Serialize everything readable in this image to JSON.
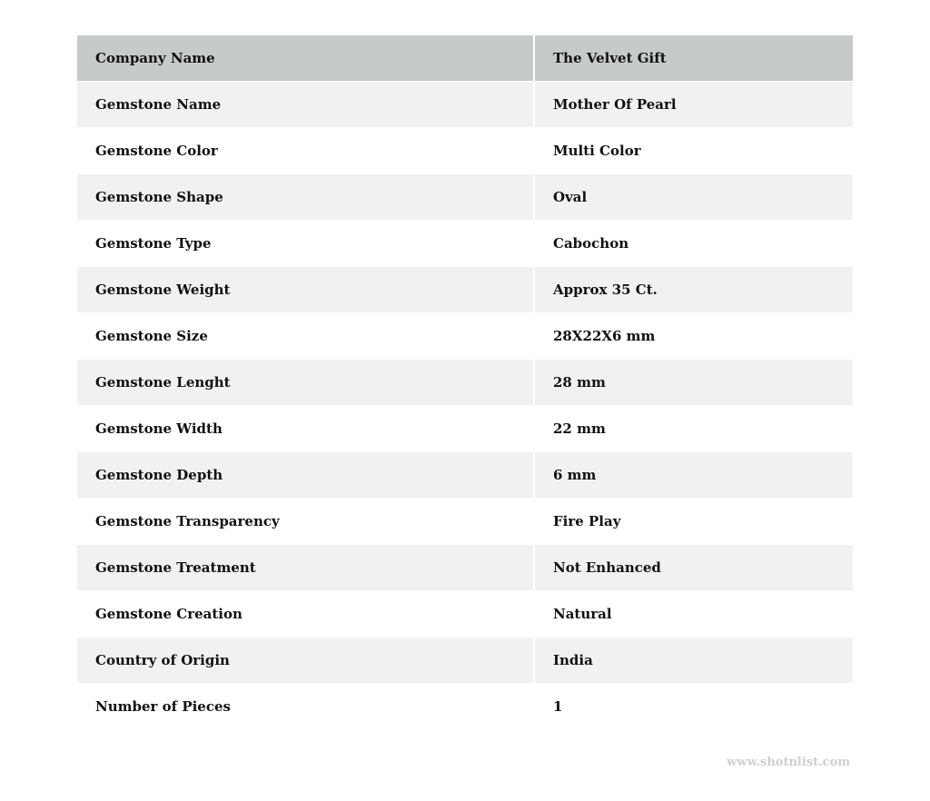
{
  "table": {
    "rows": [
      {
        "label": "Company Name",
        "value": "The Velvet Gift"
      },
      {
        "label": "Gemstone Name",
        "value": "Mother Of Pearl"
      },
      {
        "label": "Gemstone Color",
        "value": "Multi Color"
      },
      {
        "label": "Gemstone Shape",
        "value": "Oval"
      },
      {
        "label": "Gemstone Type",
        "value": "Cabochon"
      },
      {
        "label": "Gemstone Weight",
        "value": "Approx 35 Ct."
      },
      {
        "label": "Gemstone Size",
        "value": "28X22X6 mm"
      },
      {
        "label": "Gemstone Lenght",
        "value": "28 mm"
      },
      {
        "label": "Gemstone Width",
        "value": "22 mm"
      },
      {
        "label": "Gemstone Depth",
        "value": "6 mm"
      },
      {
        "label": "Gemstone Transparency",
        "value": "Fire Play"
      },
      {
        "label": "Gemstone Treatment",
        "value": "Not Enhanced"
      },
      {
        "label": "Gemstone Creation",
        "value": "Natural"
      },
      {
        "label": "Country of Origin",
        "value": "India"
      },
      {
        "label": "Number of Pieces",
        "value": "1"
      }
    ]
  },
  "watermark": "www.shotnlist.com",
  "colors": {
    "header_bg": "#c6cacb",
    "stripe_bg": "#f1f1f1",
    "watermark": "#cfcfcf"
  }
}
